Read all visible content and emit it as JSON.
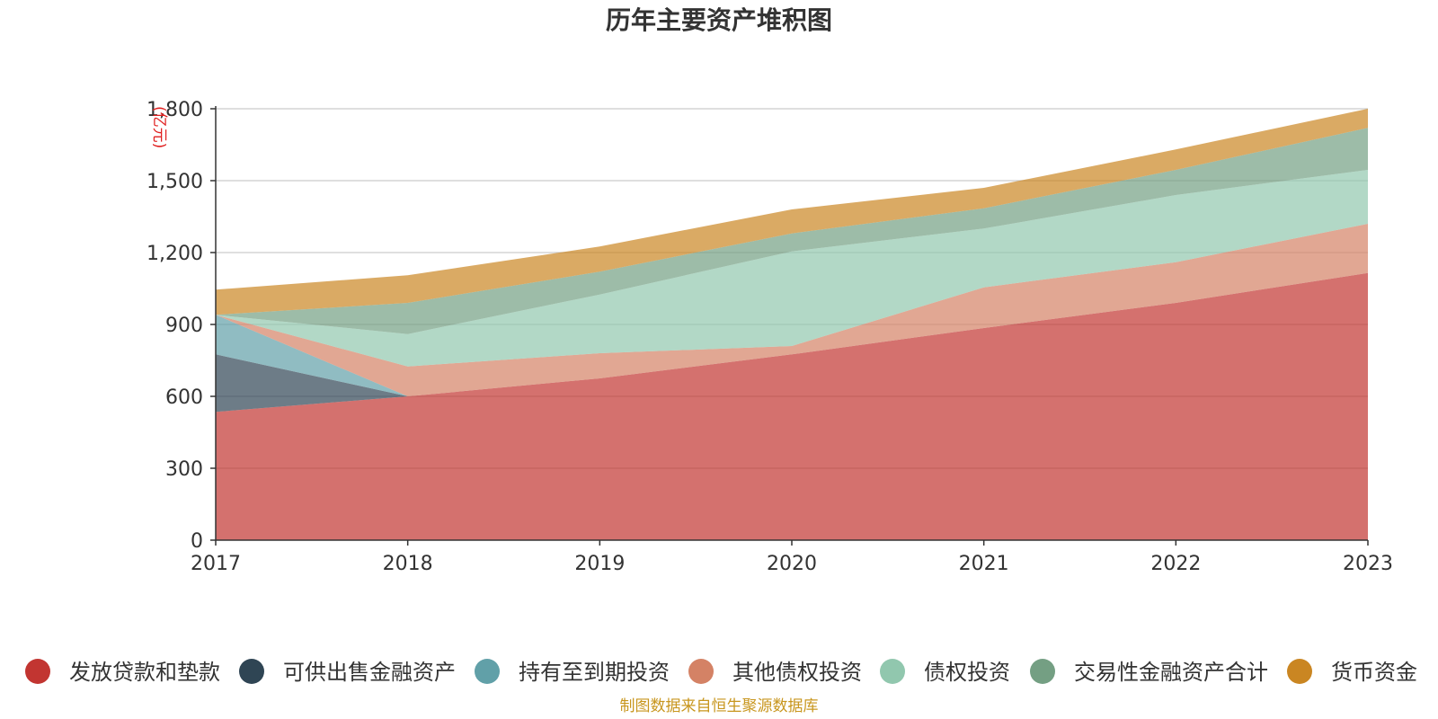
{
  "chart_data": {
    "type": "area",
    "stacked": true,
    "title": "历年主要资产堆积图",
    "ylabel": "(亿元)",
    "ylim": [
      0,
      1800
    ],
    "yticks": [
      0,
      300,
      600,
      900,
      1200,
      1500,
      1800
    ],
    "ytick_labels": [
      "0",
      "300",
      "600",
      "900",
      "1,200",
      "1,500",
      "1,800"
    ],
    "categories": [
      "2017",
      "2018",
      "2019",
      "2020",
      "2021",
      "2022",
      "2023"
    ],
    "grid": true,
    "legend_position": "bottom",
    "series": [
      {
        "name": "发放贷款和垫款",
        "color": "#c23531",
        "values": [
          535,
          600,
          675,
          775,
          885,
          990,
          1115
        ]
      },
      {
        "name": "可供出售金融资产",
        "color": "#2f4554",
        "values": [
          240,
          0,
          0,
          0,
          0,
          0,
          0
        ]
      },
      {
        "name": "持有至到期投资",
        "color": "#61a0a8",
        "values": [
          165,
          0,
          0,
          0,
          0,
          0,
          0
        ]
      },
      {
        "name": "其他债权投资",
        "color": "#d48265",
        "values": [
          0,
          125,
          105,
          35,
          170,
          170,
          205
        ]
      },
      {
        "name": "债权投资",
        "color": "#91c7ae",
        "values": [
          0,
          135,
          245,
          395,
          245,
          280,
          225
        ]
      },
      {
        "name": "交易性金融资产合计",
        "color": "#749f83",
        "values": [
          0,
          130,
          95,
          75,
          85,
          105,
          175
        ]
      },
      {
        "name": "货币资金",
        "color": "#ca8622",
        "values": [
          105,
          115,
          105,
          100,
          85,
          85,
          80
        ]
      }
    ]
  },
  "source": "制图数据来自恒生聚源数据库"
}
